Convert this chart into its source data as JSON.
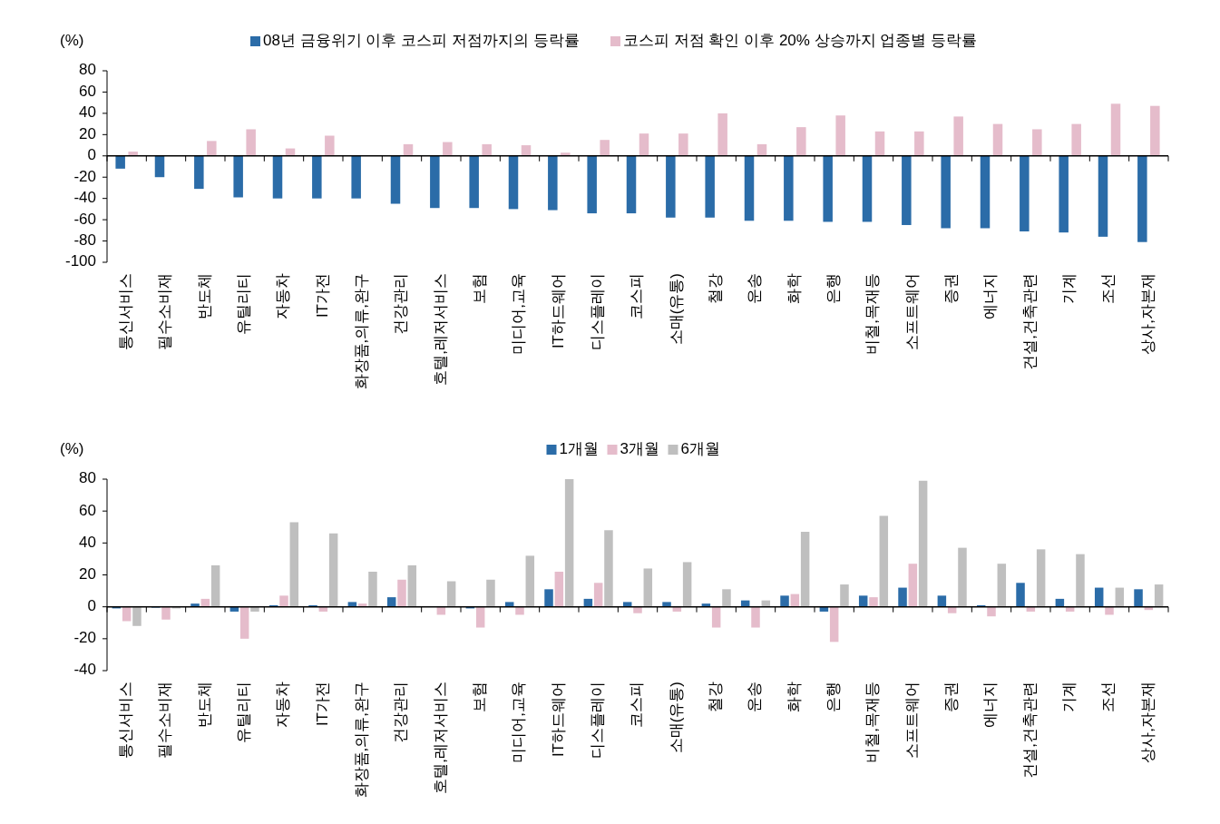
{
  "chart_data": [
    {
      "type": "bar",
      "ylabel": "(%)",
      "legend": "top",
      "categories": [
        "통신서비스",
        "필수소비재",
        "반도체",
        "유틸리티",
        "자동차",
        "IT가전",
        "화장품,의류,완구",
        "건강관리",
        "호텔,레저서비스",
        "보험",
        "미디어,교육",
        "IT하드웨어",
        "디스플레이",
        "코스피",
        "소매(유통)",
        "철강",
        "운송",
        "화학",
        "은행",
        "비철,목재등",
        "소프트웨어",
        "증권",
        "에너지",
        "건설,건축관련",
        "기계",
        "조선",
        "상사,자본재"
      ],
      "series": [
        {
          "name": "08년 금융위기 이후 코스피 저점까지의 등락률",
          "color": "#2b6ca8",
          "values": [
            -12,
            -20,
            -31,
            -39,
            -40,
            -40,
            -40,
            -45,
            -49,
            -49,
            -50,
            -51,
            -54,
            -54,
            -58,
            -58,
            -61,
            -61,
            -62,
            -62,
            -65,
            -68,
            -68,
            -71,
            -72,
            -76,
            -81
          ]
        },
        {
          "name": "코스피 저점 확인 이후 20% 상승까지 업종별 등락률",
          "color": "#e5bccb",
          "values": [
            4,
            null,
            14,
            25,
            7,
            19,
            null,
            11,
            13,
            11,
            10,
            3,
            15,
            21,
            21,
            40,
            11,
            27,
            38,
            23,
            23,
            37,
            30,
            25,
            30,
            49,
            47
          ]
        }
      ],
      "ylim": [
        -100,
        80
      ],
      "yticks": [
        80,
        60,
        40,
        20,
        0,
        -20,
        -40,
        -60,
        -80,
        -100
      ]
    },
    {
      "type": "bar",
      "ylabel": "(%)",
      "legend": "top",
      "categories": [
        "통신서비스",
        "필수소비재",
        "반도체",
        "유틸리티",
        "자동차",
        "IT가전",
        "화장품,의류,완구",
        "건강관리",
        "호텔,레저서비스",
        "보험",
        "미디어,교육",
        "IT하드웨어",
        "디스플레이",
        "코스피",
        "소매(유통)",
        "철강",
        "운송",
        "화학",
        "은행",
        "비철,목재등",
        "소프트웨어",
        "증권",
        "에너지",
        "건설,건축관련",
        "기계",
        "조선",
        "상사,자본재"
      ],
      "series": [
        {
          "name": "1개월",
          "color": "#2b6ca8",
          "values": [
            -1,
            -0.5,
            2,
            -3,
            1,
            1,
            3,
            6,
            0,
            -1,
            3,
            11,
            5,
            3,
            3,
            2,
            4,
            7,
            -3,
            7,
            12,
            7,
            1,
            15,
            5,
            12,
            11
          ]
        },
        {
          "name": "3개월",
          "color": "#e5bccb",
          "values": [
            -9,
            -8,
            5,
            -20,
            7,
            -3,
            2,
            17,
            -5,
            -13,
            -5,
            22,
            15,
            -4,
            -3,
            -13,
            -13,
            8,
            -22,
            6,
            27,
            -4,
            -6,
            -3,
            -3,
            -5,
            -2
          ]
        },
        {
          "name": "6개월",
          "color": "#bfbfbf",
          "values": [
            -12,
            -1,
            26,
            -3,
            53,
            46,
            22,
            26,
            16,
            17,
            32,
            80,
            48,
            24,
            28,
            11,
            4,
            47,
            14,
            57,
            79,
            37,
            27,
            36,
            33,
            12,
            14
          ]
        }
      ],
      "ylim": [
        -40,
        80
      ],
      "yticks": [
        80,
        60,
        40,
        20,
        0,
        -20,
        -40
      ]
    }
  ]
}
